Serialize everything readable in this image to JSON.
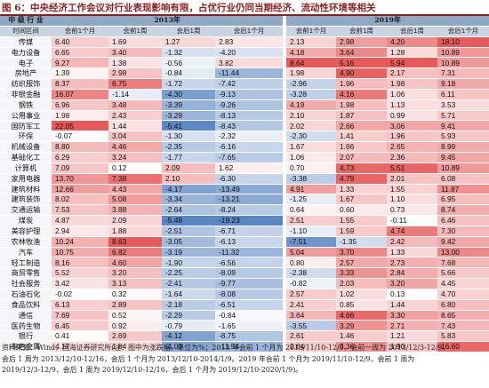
{
  "title": "图 6：中央经济工作会议对行业表现影响有限，占优行业仍同当期经济、流动性环境等相关",
  "year_2013": "2013年",
  "year_2019": "2019年",
  "head_industry": "中 级 行 业",
  "columns": [
    "时间区间",
    "会前1个月",
    "会前1周",
    "会后1周",
    "会后1个月",
    "会前1个月",
    "会前1周",
    "会后1周",
    "会后1个月"
  ],
  "rows": [
    {
      "name": "传媒",
      "v": [
        6.4,
        1.69,
        1.27,
        2.83,
        2.13,
        2.98,
        4.2,
        18.1
      ]
    },
    {
      "name": "电力设备",
      "v": [
        6.65,
        3.4,
        -1.32,
        -4.2,
        4.18,
        3.64,
        1.28,
        10.89
      ]
    },
    {
      "name": "电子",
      "v": [
        9.27,
        1.38,
        -0.56,
        3.82,
        8.64,
        5.16,
        5.94,
        10.89
      ]
    },
    {
      "name": "房地产",
      "v": [
        1.39,
        2.98,
        -0.84,
        -11.44,
        1.98,
        4.9,
        2.17,
        7.31
      ]
    },
    {
      "name": "纺织服饰",
      "v": [
        8.37,
        6.75,
        -1.72,
        -7.42,
        -2.96,
        1.96,
        1.98,
        9.18
      ]
    },
    {
      "name": "非银金融",
      "v": [
        16.07,
        -1.14,
        -4.3,
        -9.13,
        -3.28,
        4.16,
        1.06,
        6.11
      ]
    },
    {
      "name": "钢铁",
      "v": [
        6.96,
        3.48,
        -3.39,
        -9.26,
        4.19,
        1.98,
        1.13,
        3.53
      ]
    },
    {
      "name": "公用事业",
      "v": [
        1.98,
        2.43,
        -3.29,
        -8.13,
        2.1,
        1.87,
        0.99,
        5.71
      ]
    },
    {
      "name": "国防军工",
      "v": [
        22.05,
        1.44,
        -5.41,
        -8.43,
        2.02,
        2.66,
        3.06,
        9.41
      ]
    },
    {
      "name": "环保",
      "v": [
        -0.07,
        3.04,
        -1.3,
        -2.32,
        -2.3,
        1.41,
        1.96,
        5.93
      ]
    },
    {
      "name": "机械设备",
      "v": [
        8.8,
        4.46,
        -2.35,
        -6.16,
        1.67,
        1.66,
        2.65,
        8.99
      ]
    },
    {
      "name": "基础化工",
      "v": [
        6.29,
        3.24,
        -1.77,
        -7.65,
        1.06,
        2.07,
        2.36,
        9.45
      ]
    },
    {
      "name": "计算机",
      "v": [
        7.09,
        0.12,
        2.09,
        1.62,
        0.7,
        4.73,
        5.51,
        10.89
      ]
    },
    {
      "name": "家用电器",
      "v": [
        13.7,
        7.38,
        2.1,
        -6.3,
        -3.38,
        4.79,
        2.01,
        6.08
      ]
    },
    {
      "name": "建筑材料",
      "v": [
        12.66,
        4.43,
        -4.17,
        -13.49,
        4.91,
        1.33,
        1.55,
        11.87
      ]
    },
    {
      "name": "建筑装饰",
      "v": [
        8.02,
        5.08,
        -3.34,
        -13.21,
        -1.25,
        1.67,
        1.1,
        6.95
      ]
    },
    {
      "name": "交通运输",
      "v": [
        7.53,
        3.88,
        -2.64,
        -8.24,
        0.64,
        0.6,
        0.73,
        8.74
      ]
    },
    {
      "name": "煤炭",
      "v": [
        4.87,
        2.09,
        -5.48,
        -19.23,
        2.51,
        1.55,
        -0.11,
        6.46
      ]
    },
    {
      "name": "美容护理",
      "v": [
        2.94,
        1.88,
        -2.51,
        -6.71,
        -1.1,
        1.59,
        4.74,
        7.3
      ]
    },
    {
      "name": "农林牧渔",
      "v": [
        10.24,
        8.63,
        -3.05,
        -6.13,
        -7.51,
        -1.35,
        2.42,
        9.42
      ]
    },
    {
      "name": "汽车",
      "v": [
        10.75,
        6.82,
        -3.19,
        -11.32,
        5.04,
        3.7,
        1.33,
        13.0
      ]
    },
    {
      "name": "轻工制造",
      "v": [
        8.16,
        4.6,
        -1.9,
        -6.56,
        0.8,
        2.57,
        2.73,
        7.68
      ]
    },
    {
      "name": "商贸零售",
      "v": [
        5.52,
        3.2,
        -2.25,
        -8.09,
        -2.38,
        3.33,
        2.84,
        5.66
      ]
    },
    {
      "name": "社会服务",
      "v": [
        3.42,
        3.13,
        -2.41,
        -9.77,
        -0.82,
        2.03,
        3.2,
        4.45
      ]
    },
    {
      "name": "石油石化",
      "v": [
        -0.02,
        0.32,
        -1.64,
        -8.08,
        2.57,
        1.02,
        0.13,
        4.7
      ]
    },
    {
      "name": "食品饮料",
      "v": [
        6.13,
        2.89,
        -2.18,
        -6.51,
        2.41,
        0.85,
        1.44,
        6.8
      ]
    },
    {
      "name": "通信",
      "v": [
        7.69,
        0.52,
        -2.29,
        -0.84,
        3.64,
        4.66,
        3.3,
        8.65
      ]
    },
    {
      "name": "医药生物",
      "v": [
        6.45,
        0.92,
        -0.79,
        -1.65,
        -3.55,
        3.29,
        2.71,
        7.43
      ]
    },
    {
      "name": "银行",
      "v": [
        0.41,
        2.69,
        -4.12,
        -8.75,
        2.61,
        1.46,
        1.21,
        5.83
      ]
    },
    {
      "name": "有色金属",
      "v": [
        4.17,
        1.84,
        -4.03,
        -11.54,
        2.64,
        3.36,
        1.9,
        16.6
      ]
    }
  ],
  "notes": [
    "资料来源：Wind，国海证券研究所(注：图中为涨跌幅，单位为%；2013 年会前 1 个月为 2013/11/10-12/9，会前一周为 2013/12/3-12/9，",
    "会后 1 周为 2013/12/10-12/16，会后 1 个月为 2013/12/10-2014/1/9。2019 年会前 1 个月为 2019/11/10-12/9，会前 1 周为",
    "2019/12/3-12/9，会后 1 周为 2019/12/10-12/16，会后 1 个月为 2019/12/10-2020/1/9)。"
  ],
  "colors": {
    "title": "#8B1E1E",
    "header_year": "#8FA8C3",
    "header_cols": "#C9D4E2",
    "positive_max": "#E85A5A",
    "negative_max": "#5B86C4"
  }
}
